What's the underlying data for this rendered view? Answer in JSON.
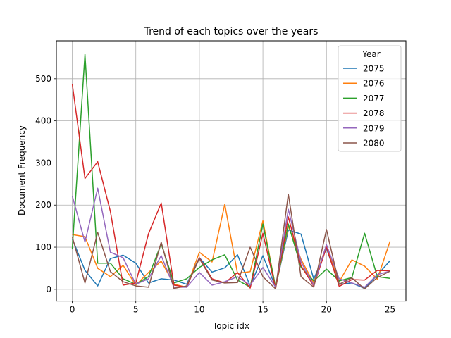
{
  "chart_data": {
    "type": "line",
    "title": "Trend of each topics over the years",
    "xlabel": "Topic idx",
    "ylabel": "Document Frequency",
    "xlim": [
      -1.25,
      26.25
    ],
    "ylim": [
      -28,
      590
    ],
    "xticks": [
      0,
      5,
      10,
      15,
      20,
      25
    ],
    "yticks": [
      0,
      100,
      200,
      300,
      400,
      500
    ],
    "grid": true,
    "legend": {
      "title": "Year",
      "position": "top-right"
    },
    "x": [
      0,
      1,
      2,
      3,
      4,
      5,
      6,
      7,
      8,
      9,
      10,
      11,
      12,
      13,
      14,
      15,
      16,
      17,
      18,
      19,
      20,
      21,
      22,
      23,
      24,
      25
    ],
    "series": [
      {
        "name": "2075",
        "color": "#1f77b4",
        "values": [
          120,
          45,
          8,
          73,
          81,
          62,
          15,
          25,
          22,
          12,
          75,
          41,
          51,
          82,
          8,
          80,
          5,
          141,
          131,
          24,
          97,
          12,
          15,
          2,
          34,
          68
        ]
      },
      {
        "name": "2076",
        "color": "#ff7f0e",
        "values": [
          130,
          125,
          50,
          30,
          57,
          10,
          40,
          67,
          12,
          5,
          88,
          65,
          202,
          38,
          42,
          163,
          4,
          150,
          71,
          15,
          105,
          18,
          70,
          55,
          24,
          114
        ]
      },
      {
        "name": "2077",
        "color": "#2ca02c",
        "values": [
          95,
          558,
          62,
          62,
          25,
          12,
          30,
          108,
          15,
          25,
          52,
          70,
          82,
          22,
          5,
          155,
          5,
          155,
          52,
          20,
          48,
          20,
          28,
          133,
          30,
          26
        ]
      },
      {
        "name": "2078",
        "color": "#d62728",
        "values": [
          488,
          263,
          303,
          185,
          10,
          15,
          132,
          205,
          10,
          5,
          75,
          25,
          15,
          40,
          3,
          133,
          2,
          172,
          56,
          8,
          100,
          7,
          23,
          22,
          45,
          44
        ]
      },
      {
        "name": "2079",
        "color": "#9467bd",
        "values": [
          222,
          112,
          240,
          88,
          75,
          12,
          25,
          80,
          5,
          5,
          40,
          10,
          18,
          30,
          10,
          52,
          5,
          190,
          65,
          10,
          106,
          25,
          15,
          5,
          35,
          43
        ]
      },
      {
        "name": "2080",
        "color": "#8c564b",
        "values": [
          125,
          15,
          135,
          42,
          18,
          8,
          5,
          112,
          2,
          8,
          73,
          22,
          15,
          16,
          100,
          30,
          1,
          226,
          30,
          5,
          142,
          12,
          27,
          1,
          28,
          43
        ]
      }
    ]
  }
}
